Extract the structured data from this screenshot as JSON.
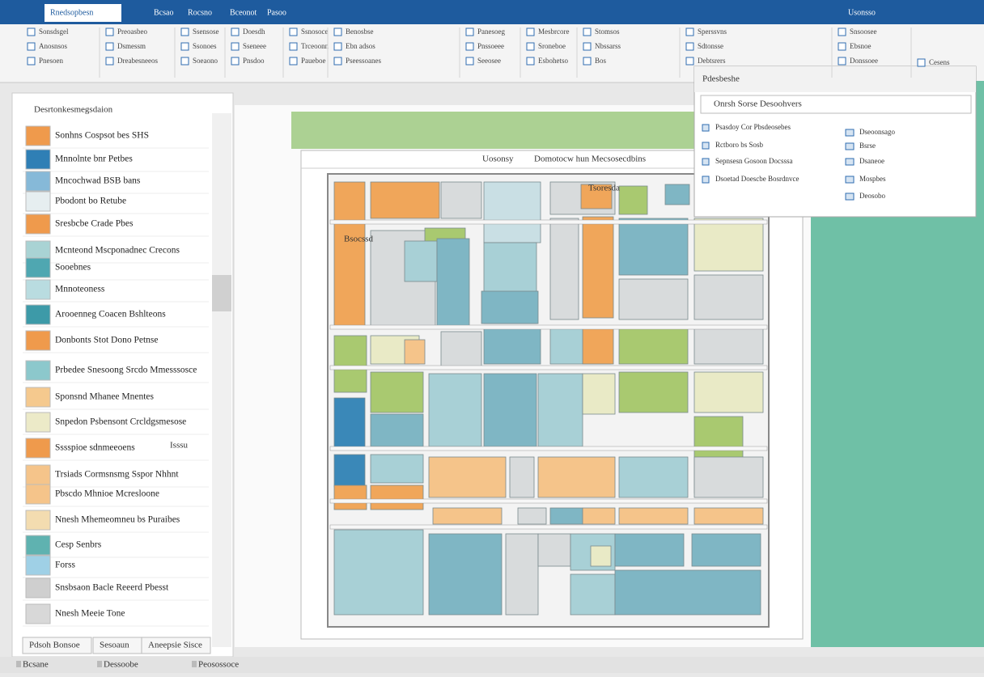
{
  "title_bar": {
    "tabs": [
      "Rnedsopbesn",
      "Bcsao",
      "Rocsno",
      "Bceonot",
      "Pasoo"
    ],
    "right": "Usonsso"
  },
  "ribbon": {
    "groups": [
      {
        "items": [
          "Sonsdsgel",
          "Anosnsos",
          "Pnesoen"
        ]
      },
      {
        "items": [
          "Preoasbeo",
          "Dsmessm",
          "Dreabesneeos"
        ]
      },
      {
        "items": [
          "Ssensose",
          "Ssonoes",
          "Soeaono"
        ]
      },
      {
        "items": [
          "Doesdh",
          "Sseneee",
          "Pnsdoo"
        ]
      },
      {
        "items": [
          "Ssnosoce",
          "Trceoonn",
          "Paueboe"
        ]
      },
      {
        "items": [
          "Benosbse",
          "Ebn adsos",
          "Pseessoanes"
        ]
      },
      {
        "items": [
          "Panesoeg",
          "Pnssoeee",
          "Seeosee"
        ]
      },
      {
        "items": [
          "Mesbrcore",
          "Sroneboe",
          "Esbohetso"
        ]
      },
      {
        "items": [
          "Stomsos",
          "Nbssarss",
          "Bos"
        ]
      },
      {
        "items": [
          "Sperssvns",
          "Sdtonsse",
          "Debtsrers"
        ]
      },
      {
        "items": [
          "Snsoosee",
          "Ebsnoe",
          "Donssoee"
        ]
      },
      {
        "items": [
          "Cesens"
        ]
      }
    ]
  },
  "left_panel": {
    "title": "Desrtonkesmegsdaion",
    "items": [
      {
        "label": "Sonhns Cospsot bes SHS",
        "color": "#ef9a4c"
      },
      {
        "label": "Mnnolnte bnr Petbes",
        "color": "#2f7fb5"
      },
      {
        "label": "Mncochwad BSB bans",
        "color": "#86b9d8"
      },
      {
        "label": "Pbodont bo Retube",
        "color": "#e6eef0"
      },
      {
        "label": "Sresbcbe Crade Pbes",
        "color": "#ef9a4c"
      },
      {
        "label": "Mcnteond Mscponadnec Crecons",
        "color": "#a9d3d4"
      },
      {
        "label": "Sooebnes",
        "color": "#4fa7b1"
      },
      {
        "label": "Mnnoteoness",
        "color": "#b9dce0"
      },
      {
        "label": "Arooenneg Coacen Bshlteons",
        "color": "#3d9aa8"
      },
      {
        "label": "Donbonts Stot Dono Petnse",
        "color": "#ef9a4c"
      },
      {
        "label": "Prbedee Snesoong Srcdo Mmesssosce",
        "color": "#8cc8cc"
      },
      {
        "label": "Sponsnd Mhanee Mnentes",
        "color": "#f5c98e"
      },
      {
        "label": "Snpedon Psbensont Crcldgsmesose",
        "color": "#eceac8"
      },
      {
        "label": "Sssspioe sdnmeeoens",
        "color": "#ef9a4c"
      },
      {
        "label": "Trsiads Cormsnsmg Sspor Nhhnt",
        "color": "#f5c48a"
      },
      {
        "label": "Pbscdo Mhnioe Mcresloone",
        "color": "#f5c48a"
      },
      {
        "label": "Nnesh Mhemeomneu bs Puraibes",
        "color": "#f3dcb0"
      },
      {
        "label": "Cesp Senbrs",
        "color": "#5fb2b0"
      },
      {
        "label": "Forss",
        "color": "#9fd0e6"
      },
      {
        "label": "Snsbsaon Bacle Reeerd Pbesst",
        "color": "#cfcfcf"
      },
      {
        "label": "Nnesh Meeie Tone",
        "color": "#d8d8d8"
      }
    ],
    "side_note": "Isssu",
    "footer_tabs": [
      "Pdsoh Bonsoe",
      "Sesoaun",
      "Aneepsie Sisce"
    ]
  },
  "document": {
    "header_left": "Uosonsy",
    "header_center": "Domotocw hun Mecsosecdbins",
    "plan_labels": [
      "Tsoresda",
      "Bsocssd"
    ]
  },
  "dropdown": {
    "title": "Pdesbeshe",
    "search": "Onrsh Sorse Desoohvers",
    "left_items": [
      "Psasdoy Cor Pbsdeosebes",
      "Rctboro bs Sosb",
      "Sepnsesn Gosoon Docsssa",
      "Dsoetad Doescbe Bosrdnvce"
    ],
    "right_items": [
      "Dseoonsago",
      "Bsrse",
      "Dsaneoe",
      "Mospbes",
      "Deosobo"
    ]
  },
  "status_bar": {
    "items": [
      "Bcsane",
      "Dessoobe",
      "Peosossoce"
    ]
  }
}
